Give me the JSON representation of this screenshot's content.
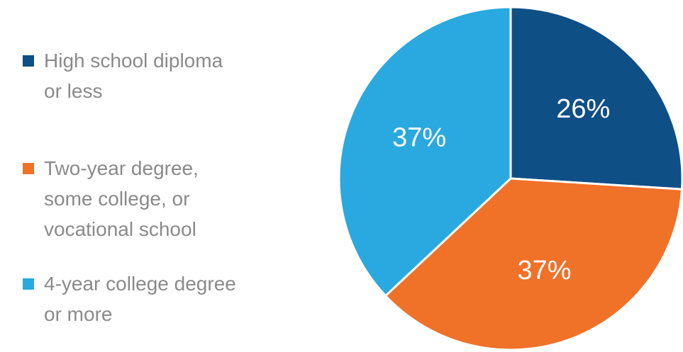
{
  "chart_data": {
    "type": "pie",
    "categories": [
      "High school diploma or less",
      "Two-year degree, some college, or vocational school",
      "4-year college degree or more"
    ],
    "values": [
      26,
      37,
      37
    ],
    "value_labels": [
      "26%",
      "37%",
      "37%"
    ],
    "colors": [
      "#0e4f86",
      "#f07128",
      "#29a9e0"
    ]
  }
}
